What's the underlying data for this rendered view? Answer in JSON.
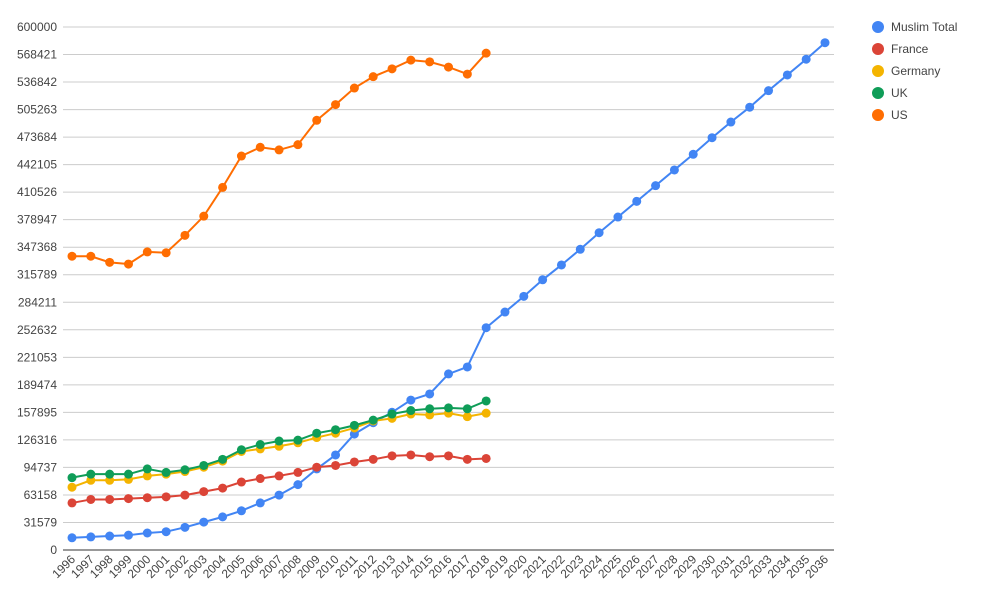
{
  "chart_data": {
    "type": "line",
    "categories": [
      "1996",
      "1997",
      "1998",
      "1999",
      "2000",
      "2001",
      "2002",
      "2003",
      "2004",
      "2005",
      "2006",
      "2007",
      "2008",
      "2009",
      "2010",
      "2011",
      "2012",
      "2013",
      "2014",
      "2015",
      "2016",
      "2017",
      "2018",
      "2019",
      "2020",
      "2021",
      "2022",
      "2023",
      "2024",
      "2025",
      "2026",
      "2027",
      "2028",
      "2029",
      "2030",
      "2031",
      "2032",
      "2033",
      "2034",
      "2035",
      "2036"
    ],
    "series": [
      {
        "name": "Muslim Total",
        "color": "#4285f4",
        "values": [
          14000,
          15000,
          16000,
          17000,
          19500,
          21000,
          26000,
          32000,
          38000,
          45000,
          54000,
          63000,
          75000,
          93000,
          109000,
          133000,
          146000,
          158000,
          172000,
          179000,
          202000,
          210000,
          255000,
          273000,
          291000,
          310000,
          327000,
          345000,
          364000,
          382000,
          400000,
          418000,
          436000,
          454000,
          473000,
          491000,
          508000,
          527000,
          545000,
          563000,
          582000
        ]
      },
      {
        "name": "France",
        "color": "#db4437",
        "values": [
          54000,
          58000,
          58000,
          59000,
          60000,
          61000,
          63000,
          67000,
          71000,
          78000,
          82000,
          85000,
          89000,
          95000,
          97000,
          101000,
          104000,
          108000,
          109000,
          107000,
          108000,
          104000,
          105000,
          null,
          null,
          null,
          null,
          null,
          null,
          null,
          null,
          null,
          null,
          null,
          null,
          null,
          null,
          null,
          null,
          null,
          null
        ]
      },
      {
        "name": "Germany",
        "color": "#f4b400",
        "values": [
          72000,
          80000,
          80000,
          81000,
          85000,
          87000,
          90000,
          95000,
          102000,
          113000,
          116000,
          119000,
          123000,
          129000,
          134000,
          140000,
          148000,
          151000,
          156000,
          155000,
          157000,
          153000,
          157000,
          null,
          null,
          null,
          null,
          null,
          null,
          null,
          null,
          null,
          null,
          null,
          null,
          null,
          null,
          null,
          null,
          null,
          null
        ]
      },
      {
        "name": "UK",
        "color": "#0f9d58",
        "values": [
          83000,
          87000,
          87000,
          87000,
          93000,
          89000,
          92000,
          97000,
          104000,
          115000,
          121000,
          125000,
          126000,
          134000,
          138000,
          143000,
          149000,
          156000,
          160000,
          162000,
          163000,
          162000,
          171000,
          null,
          null,
          null,
          null,
          null,
          null,
          null,
          null,
          null,
          null,
          null,
          null,
          null,
          null,
          null,
          null,
          null,
          null
        ]
      },
      {
        "name": "US",
        "color": "#ff6d01",
        "values": [
          337000,
          337000,
          330000,
          328000,
          342000,
          341000,
          361000,
          383000,
          416000,
          452000,
          462000,
          459000,
          465000,
          493000,
          511000,
          530000,
          543000,
          552000,
          562000,
          560000,
          554000,
          546000,
          570000,
          null,
          null,
          null,
          null,
          null,
          null,
          null,
          null,
          null,
          null,
          null,
          null,
          null,
          null,
          null,
          null,
          null,
          null
        ]
      }
    ],
    "ylim": [
      0,
      600000
    ],
    "yticks": [
      0,
      31579,
      63158,
      94737,
      126316,
      157895,
      189474,
      221053,
      252632,
      284211,
      315789,
      347368,
      378947,
      410526,
      442105,
      473684,
      505263,
      536842,
      568421,
      600000
    ],
    "grid": true,
    "legend": "right"
  }
}
